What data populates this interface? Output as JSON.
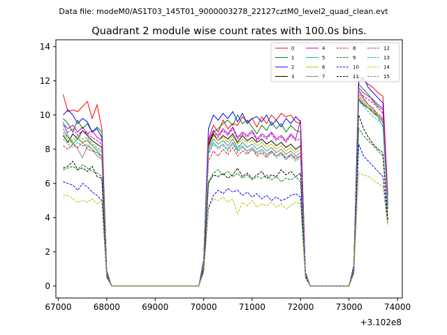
{
  "header": {
    "data_file": "Data file: modeM0/AS1T03_145T01_9000003278_22127cztM0_level2_quad_clean.evt",
    "title": "Quadrant 2 module wise count rates with 100.0s bins.",
    "x_offset_label": "+3.102e8"
  },
  "chart_data": {
    "type": "line",
    "title": "Quadrant 2 module wise count rates with 100.0s bins.",
    "xlabel": "",
    "ylabel": "",
    "x_offset": 310200000,
    "xlim": [
      66950,
      74100
    ],
    "ylim": [
      -0.7,
      14.4
    ],
    "x_ticks": [
      67000,
      68000,
      69000,
      70000,
      71000,
      72000,
      73000,
      74000
    ],
    "y_ticks": [
      0,
      2,
      4,
      6,
      8,
      10,
      12,
      14
    ],
    "legend_placement": "top-right",
    "x": [
      67100,
      67200,
      67300,
      67400,
      67500,
      67600,
      67700,
      67800,
      67900,
      68000,
      68100,
      68200,
      68300,
      68400,
      68500,
      68600,
      68700,
      68800,
      68900,
      69000,
      69100,
      69200,
      69300,
      69400,
      69500,
      69600,
      69700,
      69800,
      69900,
      70000,
      70100,
      70200,
      70300,
      70400,
      70500,
      70600,
      70700,
      70800,
      70900,
      71000,
      71100,
      71200,
      71300,
      71400,
      71500,
      71600,
      71700,
      71800,
      71900,
      72000,
      72100,
      72200,
      72300,
      72400,
      72500,
      72600,
      72700,
      72800,
      72900,
      73000,
      73100,
      73200,
      73300,
      73400,
      73500,
      73600,
      73700,
      73800
    ],
    "series": [
      {
        "name": "0",
        "color": "#ff0000",
        "dash": false,
        "values": [
          11.2,
          10.2,
          10.3,
          10.2,
          10.5,
          10.8,
          9.8,
          10.6,
          9.2,
          0.8,
          0,
          0,
          0,
          0,
          0,
          0,
          0,
          0,
          0,
          0,
          0,
          0,
          0,
          0,
          0,
          0,
          0,
          0,
          0,
          1.5,
          8.6,
          9.4,
          9.0,
          9.7,
          9.2,
          9.5,
          9.4,
          9.9,
          9.6,
          9.8,
          9.3,
          9.9,
          9.5,
          10.0,
          9.7,
          10.1,
          9.9,
          10.0,
          9.6,
          9.5,
          0.8,
          0,
          0,
          0,
          0,
          0,
          0,
          0,
          0,
          0,
          1.2,
          12.3,
          12.0,
          11.8,
          11.6,
          11.3,
          11.1,
          5.3
        ]
      },
      {
        "name": "1",
        "color": "#008000",
        "dash": false,
        "values": [
          9.8,
          9.5,
          9.0,
          9.7,
          9.2,
          9.5,
          9.0,
          9.3,
          9.0,
          0.9,
          0,
          0,
          0,
          0,
          0,
          0,
          0,
          0,
          0,
          0,
          0,
          0,
          0,
          0,
          0,
          0,
          0,
          0,
          0,
          1.4,
          8.3,
          9.0,
          9.2,
          9.5,
          9.7,
          9.4,
          10.0,
          9.5,
          9.7,
          9.3,
          8.9,
          9.4,
          9.1,
          9.6,
          9.2,
          9.5,
          9.0,
          9.4,
          9.1,
          9.0,
          0.7,
          0,
          0,
          0,
          0,
          0,
          0,
          0,
          0,
          0,
          1.1,
          11.8,
          11.5,
          11.2,
          10.8,
          10.5,
          10.3,
          4.9
        ]
      },
      {
        "name": "2",
        "color": "#0000ff",
        "dash": false,
        "values": [
          10.0,
          10.3,
          10.0,
          9.5,
          9.8,
          9.6,
          9.0,
          9.2,
          8.7,
          0.8,
          0,
          0,
          0,
          0,
          0,
          0,
          0,
          0,
          0,
          0,
          0,
          0,
          0,
          0,
          0,
          0,
          0,
          0,
          0,
          1.5,
          9.2,
          10.0,
          9.7,
          10.1,
          9.8,
          10.2,
          9.6,
          10.1,
          9.5,
          9.8,
          9.9,
          9.6,
          10.0,
          9.4,
          9.7,
          9.3,
          9.8,
          9.5,
          9.9,
          9.6,
          0.8,
          0,
          0,
          0,
          0,
          0,
          0,
          0,
          0,
          0,
          1.2,
          11.9,
          12.2,
          11.6,
          11.3,
          11.0,
          10.7,
          4.8
        ]
      },
      {
        "name": "3",
        "color": "#000000",
        "dash": false,
        "values": [
          8.8,
          8.4,
          8.9,
          8.6,
          9.1,
          8.8,
          8.5,
          8.3,
          8.1,
          0.7,
          0,
          0,
          0,
          0,
          0,
          0,
          0,
          0,
          0,
          0,
          0,
          0,
          0,
          0,
          0,
          0,
          0,
          0,
          0,
          1.3,
          8.2,
          8.9,
          8.5,
          8.8,
          8.6,
          8.9,
          8.4,
          8.8,
          8.5,
          8.7,
          8.4,
          8.6,
          8.3,
          8.5,
          8.2,
          8.4,
          8.1,
          8.3,
          8.0,
          8.2,
          0.7,
          0,
          0,
          0,
          0,
          0,
          0,
          0,
          0,
          0,
          1.0,
          10.9,
          10.6,
          10.4,
          10.2,
          9.9,
          9.6,
          4.5
        ]
      },
      {
        "name": "4",
        "color": "#bf00bf",
        "dash": false,
        "values": [
          9.5,
          9.2,
          9.4,
          9.0,
          9.3,
          8.9,
          9.1,
          8.7,
          8.5,
          0.8,
          0,
          0,
          0,
          0,
          0,
          0,
          0,
          0,
          0,
          0,
          0,
          0,
          0,
          0,
          0,
          0,
          0,
          0,
          0,
          1.4,
          8.5,
          9.1,
          8.8,
          9.2,
          8.9,
          9.3,
          8.7,
          9.0,
          8.8,
          9.1,
          8.6,
          8.9,
          8.7,
          9.0,
          8.6,
          8.8,
          8.5,
          8.9,
          8.6,
          9.7,
          0.7,
          0,
          0,
          0,
          0,
          0,
          0,
          0,
          0,
          0,
          1.1,
          11.6,
          11.3,
          11.1,
          10.9,
          10.6,
          10.4,
          4.8
        ]
      },
      {
        "name": "5",
        "color": "#00bfbf",
        "dash": false,
        "values": [
          9.6,
          8.8,
          8.3,
          8.6,
          8.4,
          8.5,
          8.2,
          7.9,
          7.6,
          0.7,
          0,
          0,
          0,
          0,
          0,
          0,
          0,
          0,
          0,
          0,
          0,
          0,
          0,
          0,
          0,
          0,
          0,
          0,
          0,
          1.3,
          8.0,
          8.6,
          8.3,
          8.5,
          8.2,
          8.6,
          8.0,
          8.4,
          8.1,
          8.3,
          8.0,
          8.2,
          7.9,
          8.1,
          7.8,
          8.0,
          7.7,
          7.9,
          7.6,
          7.8,
          0.7,
          0,
          0,
          0,
          0,
          0,
          0,
          0,
          0,
          0,
          1.0,
          11.5,
          11.0,
          10.6,
          10.3,
          9.9,
          9.3,
          4.6
        ]
      },
      {
        "name": "6",
        "color": "#bfbf00",
        "dash": false,
        "values": [
          8.9,
          8.6,
          8.3,
          8.7,
          8.4,
          8.6,
          8.2,
          8.0,
          7.8,
          0.7,
          0,
          0,
          0,
          0,
          0,
          0,
          0,
          0,
          0,
          0,
          0,
          0,
          0,
          0,
          0,
          0,
          0,
          0,
          0,
          1.3,
          8.1,
          8.8,
          8.5,
          8.7,
          8.4,
          8.8,
          8.3,
          8.6,
          8.4,
          8.5,
          8.2,
          8.4,
          8.1,
          8.3,
          8.0,
          8.2,
          7.9,
          8.1,
          7.8,
          8.0,
          0.7,
          0,
          0,
          0,
          0,
          0,
          0,
          0,
          0,
          0,
          1.0,
          11.1,
          10.8,
          10.5,
          10.2,
          10.0,
          9.8,
          4.7
        ]
      },
      {
        "name": "7",
        "color": "#808080",
        "dash": false,
        "values": [
          9.2,
          8.7,
          8.4,
          8.0,
          7.5,
          8.2,
          8.0,
          7.6,
          7.4,
          0.7,
          0,
          0,
          0,
          0,
          0,
          0,
          0,
          0,
          0,
          0,
          0,
          0,
          0,
          0,
          0,
          0,
          0,
          0,
          0,
          1.3,
          7.8,
          8.4,
          8.1,
          8.3,
          8.0,
          8.4,
          7.9,
          8.2,
          7.9,
          8.1,
          7.8,
          8.0,
          7.7,
          7.9,
          7.6,
          7.8,
          7.5,
          7.7,
          7.4,
          7.6,
          0.7,
          0,
          0,
          0,
          0,
          0,
          0,
          0,
          0,
          0,
          1.0,
          11.0,
          10.7,
          10.4,
          10.1,
          9.9,
          9.6,
          4.5
        ]
      },
      {
        "name": "8",
        "color": "#ff0000",
        "dash": true,
        "values": [
          8.2,
          8.0,
          8.3,
          8.1,
          8.4,
          8.0,
          7.9,
          7.8,
          7.5,
          0.7,
          0,
          0,
          0,
          0,
          0,
          0,
          0,
          0,
          0,
          0,
          0,
          0,
          0,
          0,
          0,
          0,
          0,
          0,
          0,
          1.2,
          7.3,
          7.9,
          7.6,
          8.0,
          7.7,
          8.1,
          7.6,
          7.9,
          7.7,
          8.0,
          7.6,
          7.8,
          7.5,
          7.9,
          7.6,
          7.8,
          7.4,
          7.7,
          7.5,
          7.6,
          0.6,
          0,
          0,
          0,
          0,
          0,
          0,
          0,
          0,
          0,
          1.0,
          11.3,
          11.0,
          10.6,
          10.4,
          10.0,
          9.7,
          4.6
        ]
      },
      {
        "name": "9",
        "color": "#008000",
        "dash": true,
        "values": [
          6.8,
          6.9,
          7.0,
          6.8,
          7.1,
          6.9,
          6.7,
          6.6,
          6.4,
          0.6,
          0,
          0,
          0,
          0,
          0,
          0,
          0,
          0,
          0,
          0,
          0,
          0,
          0,
          0,
          0,
          0,
          0,
          0,
          0,
          1.0,
          6.1,
          6.6,
          6.8,
          6.5,
          6.7,
          6.4,
          6.6,
          6.3,
          6.5,
          6.2,
          6.4,
          6.3,
          6.5,
          6.2,
          6.4,
          6.1,
          6.3,
          6.2,
          6.4,
          6.1,
          0.6,
          0,
          0,
          0,
          0,
          0,
          0,
          0,
          0,
          0,
          0.9,
          9.2,
          8.8,
          8.5,
          8.2,
          7.9,
          7.6,
          3.9
        ]
      },
      {
        "name": "10",
        "color": "#0000ff",
        "dash": true,
        "values": [
          6.1,
          6.0,
          5.9,
          5.6,
          6.0,
          5.8,
          5.5,
          5.3,
          5.0,
          0.5,
          0,
          0,
          0,
          0,
          0,
          0,
          0,
          0,
          0,
          0,
          0,
          0,
          0,
          0,
          0,
          0,
          0,
          0,
          0,
          0.9,
          4.6,
          5.3,
          5.6,
          5.4,
          5.7,
          5.5,
          5.6,
          5.3,
          5.5,
          5.2,
          5.4,
          5.1,
          5.3,
          5.0,
          5.2,
          5.0,
          5.1,
          5.3,
          5.4,
          5.2,
          0.5,
          0,
          0,
          0,
          0,
          0,
          0,
          0,
          0,
          0,
          0.8,
          8.3,
          7.6,
          7.3,
          7.0,
          6.7,
          6.4,
          3.6
        ]
      },
      {
        "name": "11",
        "color": "#000000",
        "dash": true,
        "values": [
          6.9,
          7.0,
          7.3,
          6.8,
          6.9,
          6.7,
          7.0,
          6.4,
          6.3,
          0.6,
          0,
          0,
          0,
          0,
          0,
          0,
          0,
          0,
          0,
          0,
          0,
          0,
          0,
          0,
          0,
          0,
          0,
          0,
          0,
          1.0,
          6.0,
          6.5,
          6.4,
          6.6,
          6.3,
          6.5,
          6.9,
          6.4,
          6.6,
          6.3,
          6.5,
          6.7,
          6.3,
          6.5,
          6.4,
          6.8,
          6.5,
          6.7,
          6.4,
          6.6,
          0.6,
          0,
          0,
          0,
          0,
          0,
          0,
          0,
          0,
          0,
          0.9,
          10.0,
          9.2,
          8.7,
          8.3,
          8.0,
          7.8,
          3.8
        ]
      },
      {
        "name": "12",
        "color": "#bf00bf",
        "dash": true,
        "values": [
          9.4,
          9.0,
          9.2,
          8.8,
          9.1,
          8.9,
          8.7,
          8.5,
          8.3,
          0.7,
          0,
          0,
          0,
          0,
          0,
          0,
          0,
          0,
          0,
          0,
          0,
          0,
          0,
          0,
          0,
          0,
          0,
          0,
          0,
          1.3,
          8.4,
          9.0,
          8.7,
          9.1,
          8.8,
          9.2,
          8.6,
          8.9,
          8.7,
          9.0,
          8.5,
          8.8,
          8.6,
          8.9,
          8.5,
          8.7,
          8.4,
          8.8,
          8.5,
          8.6,
          0.7,
          0,
          0,
          0,
          0,
          0,
          0,
          0,
          0,
          0,
          1.1,
          11.4,
          11.1,
          10.9,
          10.7,
          10.4,
          10.1,
          4.7
        ]
      },
      {
        "name": "13",
        "color": "#00bfbf",
        "dash": true,
        "values": [
          8.6,
          8.3,
          8.1,
          8.4,
          8.2,
          8.3,
          8.0,
          7.8,
          7.6,
          0.7,
          0,
          0,
          0,
          0,
          0,
          0,
          0,
          0,
          0,
          0,
          0,
          0,
          0,
          0,
          0,
          0,
          0,
          0,
          0,
          1.2,
          7.7,
          8.3,
          8.0,
          8.2,
          7.9,
          8.3,
          7.8,
          8.1,
          7.8,
          8.0,
          7.7,
          7.9,
          7.6,
          7.8,
          7.5,
          7.7,
          7.4,
          7.6,
          7.3,
          7.5,
          0.7,
          0,
          0,
          0,
          0,
          0,
          0,
          0,
          0,
          0,
          1.0,
          10.8,
          10.5,
          10.2,
          9.9,
          9.7,
          9.4,
          4.4
        ]
      },
      {
        "name": "14",
        "color": "#bfbf00",
        "dash": true,
        "values": [
          5.3,
          5.3,
          5.1,
          4.9,
          5.0,
          4.9,
          5.1,
          4.8,
          5.0,
          0.5,
          0,
          0,
          0,
          0,
          0,
          0,
          0,
          0,
          0,
          0,
          0,
          0,
          0,
          0,
          0,
          0,
          0,
          0,
          0,
          0.8,
          4.5,
          5.1,
          5.0,
          5.2,
          4.9,
          5.1,
          4.2,
          4.9,
          4.7,
          5.0,
          4.6,
          4.8,
          4.7,
          4.9,
          4.6,
          4.8,
          4.5,
          4.7,
          4.9,
          4.8,
          0.5,
          0,
          0,
          0,
          0,
          0,
          0,
          0,
          0,
          0,
          0.7,
          6.6,
          6.5,
          6.4,
          6.2,
          6.0,
          5.8,
          3.5
        ]
      },
      {
        "name": "15",
        "color": "#808080",
        "dash": true,
        "values": [
          9.0,
          8.7,
          8.5,
          8.8,
          8.6,
          8.7,
          8.3,
          8.1,
          7.9,
          0.7,
          0,
          0,
          0,
          0,
          0,
          0,
          0,
          0,
          0,
          0,
          0,
          0,
          0,
          0,
          0,
          0,
          0,
          0,
          0,
          1.3,
          8.0,
          8.6,
          8.3,
          8.5,
          8.2,
          8.6,
          8.1,
          8.4,
          8.1,
          8.3,
          8.0,
          8.2,
          7.9,
          8.1,
          7.8,
          8.0,
          7.7,
          7.9,
          7.6,
          7.8,
          0.7,
          0,
          0,
          0,
          0,
          0,
          0,
          0,
          0,
          0,
          1.0,
          11.2,
          10.9,
          10.6,
          10.3,
          10.1,
          9.8,
          4.6
        ]
      }
    ]
  }
}
